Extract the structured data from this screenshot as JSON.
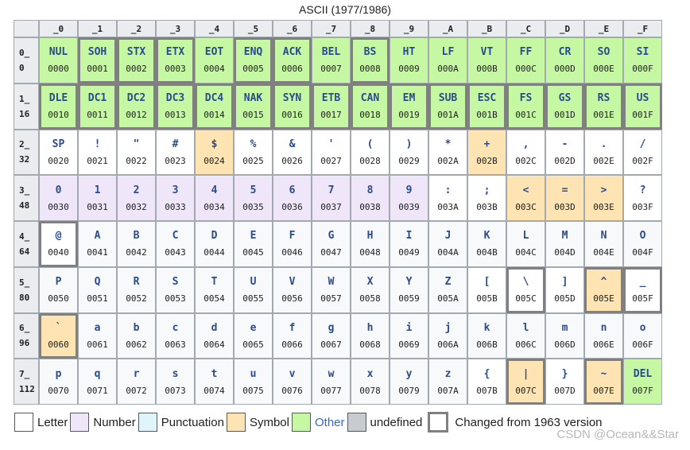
{
  "title": "ASCII (1977/1986)",
  "colors": {
    "letter": "#f8f9fa",
    "number": "#f0e6fa",
    "punctuation": "#dff4fb",
    "symbol": "#fde4b2",
    "other": "#c6f7a2",
    "undefined": "#c8ccd1",
    "changed_border": "#808080"
  },
  "column_headers": [
    "_0",
    "_1",
    "_2",
    "_3",
    "_4",
    "_5",
    "_6",
    "_7",
    "_8",
    "_9",
    "_A",
    "_B",
    "_C",
    "_D",
    "_E",
    "_F"
  ],
  "rows": [
    {
      "label": "0_",
      "dec": "0",
      "cells": [
        {
          "glyph": "NUL",
          "code": "0000",
          "type": "other",
          "changed": false
        },
        {
          "glyph": "SOH",
          "code": "0001",
          "type": "other",
          "changed": true
        },
        {
          "glyph": "STX",
          "code": "0002",
          "type": "other",
          "changed": true
        },
        {
          "glyph": "ETX",
          "code": "0003",
          "type": "other",
          "changed": true
        },
        {
          "glyph": "EOT",
          "code": "0004",
          "type": "other",
          "changed": false
        },
        {
          "glyph": "ENQ",
          "code": "0005",
          "type": "other",
          "changed": true
        },
        {
          "glyph": "ACK",
          "code": "0006",
          "type": "other",
          "changed": true
        },
        {
          "glyph": "BEL",
          "code": "0007",
          "type": "other",
          "changed": false
        },
        {
          "glyph": "BS",
          "code": "0008",
          "type": "other",
          "changed": true
        },
        {
          "glyph": "HT",
          "code": "0009",
          "type": "other",
          "changed": false
        },
        {
          "glyph": "LF",
          "code": "000A",
          "type": "other",
          "changed": false
        },
        {
          "glyph": "VT",
          "code": "000B",
          "type": "other",
          "changed": false
        },
        {
          "glyph": "FF",
          "code": "000C",
          "type": "other",
          "changed": false
        },
        {
          "glyph": "CR",
          "code": "000D",
          "type": "other",
          "changed": false
        },
        {
          "glyph": "SO",
          "code": "000E",
          "type": "other",
          "changed": false
        },
        {
          "glyph": "SI",
          "code": "000F",
          "type": "other",
          "changed": false
        }
      ]
    },
    {
      "label": "1_",
      "dec": "16",
      "cells": [
        {
          "glyph": "DLE",
          "code": "0010",
          "type": "other",
          "changed": true
        },
        {
          "glyph": "DC1",
          "code": "0011",
          "type": "other",
          "changed": true
        },
        {
          "glyph": "DC2",
          "code": "0012",
          "type": "other",
          "changed": true
        },
        {
          "glyph": "DC3",
          "code": "0013",
          "type": "other",
          "changed": true
        },
        {
          "glyph": "DC4",
          "code": "0014",
          "type": "other",
          "changed": true
        },
        {
          "glyph": "NAK",
          "code": "0015",
          "type": "other",
          "changed": true
        },
        {
          "glyph": "SYN",
          "code": "0016",
          "type": "other",
          "changed": true
        },
        {
          "glyph": "ETB",
          "code": "0017",
          "type": "other",
          "changed": true
        },
        {
          "glyph": "CAN",
          "code": "0018",
          "type": "other",
          "changed": true
        },
        {
          "glyph": "EM",
          "code": "0019",
          "type": "other",
          "changed": true
        },
        {
          "glyph": "SUB",
          "code": "001A",
          "type": "other",
          "changed": true
        },
        {
          "glyph": "ESC",
          "code": "001B",
          "type": "other",
          "changed": true
        },
        {
          "glyph": "FS",
          "code": "001C",
          "type": "other",
          "changed": true
        },
        {
          "glyph": "GS",
          "code": "001D",
          "type": "other",
          "changed": true
        },
        {
          "glyph": "RS",
          "code": "001E",
          "type": "other",
          "changed": true
        },
        {
          "glyph": "US",
          "code": "001F",
          "type": "other",
          "changed": true
        }
      ]
    },
    {
      "label": "2_",
      "dec": "32",
      "cells": [
        {
          "glyph": "SP",
          "code": "0020",
          "type": "punctuation",
          "changed": false
        },
        {
          "glyph": "!",
          "code": "0021",
          "type": "punctuation",
          "changed": false
        },
        {
          "glyph": "\"",
          "code": "0022",
          "type": "punctuation",
          "changed": false
        },
        {
          "glyph": "#",
          "code": "0023",
          "type": "punctuation",
          "changed": false
        },
        {
          "glyph": "$",
          "code": "0024",
          "type": "symbol",
          "changed": false
        },
        {
          "glyph": "%",
          "code": "0025",
          "type": "punctuation",
          "changed": false
        },
        {
          "glyph": "&",
          "code": "0026",
          "type": "punctuation",
          "changed": false
        },
        {
          "glyph": "'",
          "code": "0027",
          "type": "punctuation",
          "changed": false
        },
        {
          "glyph": "(",
          "code": "0028",
          "type": "punctuation",
          "changed": false
        },
        {
          "glyph": ")",
          "code": "0029",
          "type": "punctuation",
          "changed": false
        },
        {
          "glyph": "*",
          "code": "002A",
          "type": "punctuation",
          "changed": false
        },
        {
          "glyph": "+",
          "code": "002B",
          "type": "symbol",
          "changed": false
        },
        {
          "glyph": ",",
          "code": "002C",
          "type": "punctuation",
          "changed": false
        },
        {
          "glyph": "-",
          "code": "002D",
          "type": "punctuation",
          "changed": false
        },
        {
          "glyph": ".",
          "code": "002E",
          "type": "punctuation",
          "changed": false
        },
        {
          "glyph": "/",
          "code": "002F",
          "type": "punctuation",
          "changed": false
        }
      ]
    },
    {
      "label": "3_",
      "dec": "48",
      "cells": [
        {
          "glyph": "0",
          "code": "0030",
          "type": "number",
          "changed": false
        },
        {
          "glyph": "1",
          "code": "0031",
          "type": "number",
          "changed": false
        },
        {
          "glyph": "2",
          "code": "0032",
          "type": "number",
          "changed": false
        },
        {
          "glyph": "3",
          "code": "0033",
          "type": "number",
          "changed": false
        },
        {
          "glyph": "4",
          "code": "0034",
          "type": "number",
          "changed": false
        },
        {
          "glyph": "5",
          "code": "0035",
          "type": "number",
          "changed": false
        },
        {
          "glyph": "6",
          "code": "0036",
          "type": "number",
          "changed": false
        },
        {
          "glyph": "7",
          "code": "0037",
          "type": "number",
          "changed": false
        },
        {
          "glyph": "8",
          "code": "0038",
          "type": "number",
          "changed": false
        },
        {
          "glyph": "9",
          "code": "0039",
          "type": "number",
          "changed": false
        },
        {
          "glyph": ":",
          "code": "003A",
          "type": "punctuation",
          "changed": false
        },
        {
          "glyph": ";",
          "code": "003B",
          "type": "punctuation",
          "changed": false
        },
        {
          "glyph": "<",
          "code": "003C",
          "type": "symbol",
          "changed": false
        },
        {
          "glyph": "=",
          "code": "003D",
          "type": "symbol",
          "changed": false
        },
        {
          "glyph": ">",
          "code": "003E",
          "type": "symbol",
          "changed": false
        },
        {
          "glyph": "?",
          "code": "003F",
          "type": "punctuation",
          "changed": false
        }
      ]
    },
    {
      "label": "4_",
      "dec": "64",
      "cells": [
        {
          "glyph": "@",
          "code": "0040",
          "type": "punctuation",
          "changed": true
        },
        {
          "glyph": "A",
          "code": "0041",
          "type": "letter",
          "changed": false
        },
        {
          "glyph": "B",
          "code": "0042",
          "type": "letter",
          "changed": false
        },
        {
          "glyph": "C",
          "code": "0043",
          "type": "letter",
          "changed": false
        },
        {
          "glyph": "D",
          "code": "0044",
          "type": "letter",
          "changed": false
        },
        {
          "glyph": "E",
          "code": "0045",
          "type": "letter",
          "changed": false
        },
        {
          "glyph": "F",
          "code": "0046",
          "type": "letter",
          "changed": false
        },
        {
          "glyph": "G",
          "code": "0047",
          "type": "letter",
          "changed": false
        },
        {
          "glyph": "H",
          "code": "0048",
          "type": "letter",
          "changed": false
        },
        {
          "glyph": "I",
          "code": "0049",
          "type": "letter",
          "changed": false
        },
        {
          "glyph": "J",
          "code": "004A",
          "type": "letter",
          "changed": false
        },
        {
          "glyph": "K",
          "code": "004B",
          "type": "letter",
          "changed": false
        },
        {
          "glyph": "L",
          "code": "004C",
          "type": "letter",
          "changed": false
        },
        {
          "glyph": "M",
          "code": "004D",
          "type": "letter",
          "changed": false
        },
        {
          "glyph": "N",
          "code": "004E",
          "type": "letter",
          "changed": false
        },
        {
          "glyph": "O",
          "code": "004F",
          "type": "letter",
          "changed": false
        }
      ]
    },
    {
      "label": "5_",
      "dec": "80",
      "cells": [
        {
          "glyph": "P",
          "code": "0050",
          "type": "letter",
          "changed": false
        },
        {
          "glyph": "Q",
          "code": "0051",
          "type": "letter",
          "changed": false
        },
        {
          "glyph": "R",
          "code": "0052",
          "type": "letter",
          "changed": false
        },
        {
          "glyph": "S",
          "code": "0053",
          "type": "letter",
          "changed": false
        },
        {
          "glyph": "T",
          "code": "0054",
          "type": "letter",
          "changed": false
        },
        {
          "glyph": "U",
          "code": "0055",
          "type": "letter",
          "changed": false
        },
        {
          "glyph": "V",
          "code": "0056",
          "type": "letter",
          "changed": false
        },
        {
          "glyph": "W",
          "code": "0057",
          "type": "letter",
          "changed": false
        },
        {
          "glyph": "X",
          "code": "0058",
          "type": "letter",
          "changed": false
        },
        {
          "glyph": "Y",
          "code": "0059",
          "type": "letter",
          "changed": false
        },
        {
          "glyph": "Z",
          "code": "005A",
          "type": "letter",
          "changed": false
        },
        {
          "glyph": "[",
          "code": "005B",
          "type": "punctuation",
          "changed": false
        },
        {
          "glyph": "\\",
          "code": "005C",
          "type": "punctuation",
          "changed": true
        },
        {
          "glyph": "]",
          "code": "005D",
          "type": "punctuation",
          "changed": false
        },
        {
          "glyph": "^",
          "code": "005E",
          "type": "symbol",
          "changed": true
        },
        {
          "glyph": "_",
          "code": "005F",
          "type": "punctuation",
          "changed": true
        }
      ]
    },
    {
      "label": "6_",
      "dec": "96",
      "cells": [
        {
          "glyph": "`",
          "code": "0060",
          "type": "symbol",
          "changed": true
        },
        {
          "glyph": "a",
          "code": "0061",
          "type": "letter",
          "changed": false
        },
        {
          "glyph": "b",
          "code": "0062",
          "type": "letter",
          "changed": false
        },
        {
          "glyph": "c",
          "code": "0063",
          "type": "letter",
          "changed": false
        },
        {
          "glyph": "d",
          "code": "0064",
          "type": "letter",
          "changed": false
        },
        {
          "glyph": "e",
          "code": "0065",
          "type": "letter",
          "changed": false
        },
        {
          "glyph": "f",
          "code": "0066",
          "type": "letter",
          "changed": false
        },
        {
          "glyph": "g",
          "code": "0067",
          "type": "letter",
          "changed": false
        },
        {
          "glyph": "h",
          "code": "0068",
          "type": "letter",
          "changed": false
        },
        {
          "glyph": "i",
          "code": "0069",
          "type": "letter",
          "changed": false
        },
        {
          "glyph": "j",
          "code": "006A",
          "type": "letter",
          "changed": false
        },
        {
          "glyph": "k",
          "code": "006B",
          "type": "letter",
          "changed": false
        },
        {
          "glyph": "l",
          "code": "006C",
          "type": "letter",
          "changed": false
        },
        {
          "glyph": "m",
          "code": "006D",
          "type": "letter",
          "changed": false
        },
        {
          "glyph": "n",
          "code": "006E",
          "type": "letter",
          "changed": false
        },
        {
          "glyph": "o",
          "code": "006F",
          "type": "letter",
          "changed": false
        }
      ]
    },
    {
      "label": "7_",
      "dec": "112",
      "cells": [
        {
          "glyph": "p",
          "code": "0070",
          "type": "letter",
          "changed": false
        },
        {
          "glyph": "q",
          "code": "0071",
          "type": "letter",
          "changed": false
        },
        {
          "glyph": "r",
          "code": "0072",
          "type": "letter",
          "changed": false
        },
        {
          "glyph": "s",
          "code": "0073",
          "type": "letter",
          "changed": false
        },
        {
          "glyph": "t",
          "code": "0074",
          "type": "letter",
          "changed": false
        },
        {
          "glyph": "u",
          "code": "0075",
          "type": "letter",
          "changed": false
        },
        {
          "glyph": "v",
          "code": "0076",
          "type": "letter",
          "changed": false
        },
        {
          "glyph": "w",
          "code": "0077",
          "type": "letter",
          "changed": false
        },
        {
          "glyph": "x",
          "code": "0078",
          "type": "letter",
          "changed": false
        },
        {
          "glyph": "y",
          "code": "0079",
          "type": "letter",
          "changed": false
        },
        {
          "glyph": "z",
          "code": "007A",
          "type": "letter",
          "changed": false
        },
        {
          "glyph": "{",
          "code": "007B",
          "type": "punctuation",
          "changed": false
        },
        {
          "glyph": "|",
          "code": "007C",
          "type": "symbol",
          "changed": true
        },
        {
          "glyph": "}",
          "code": "007D",
          "type": "punctuation",
          "changed": false
        },
        {
          "glyph": "~",
          "code": "007E",
          "type": "symbol",
          "changed": true
        },
        {
          "glyph": "DEL",
          "code": "007F",
          "type": "other",
          "changed": false
        }
      ]
    }
  ],
  "legend": [
    {
      "label": "Letter",
      "type": "letter",
      "link": false
    },
    {
      "label": "Number",
      "type": "number",
      "link": false
    },
    {
      "label": "Punctuation",
      "type": "punctuation",
      "link": false
    },
    {
      "label": "Symbol",
      "type": "symbol",
      "link": false
    },
    {
      "label": "Other",
      "type": "other",
      "link": true
    },
    {
      "label": "undefined",
      "type": "undefined",
      "link": false
    },
    {
      "label": "Changed from 1963 version",
      "type": "changed",
      "link": false
    }
  ],
  "watermark": "CSDN @Ocean&&Star"
}
